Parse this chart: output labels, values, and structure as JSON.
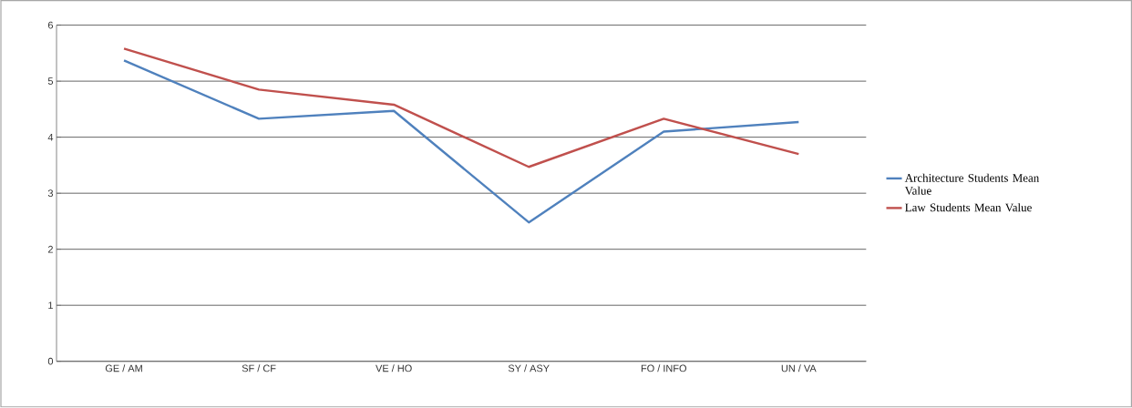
{
  "chart_data": {
    "type": "line",
    "categories": [
      "GE / AM",
      "SF / CF",
      "VE / HO",
      "SY / ASY",
      "FO / INFO",
      "UN / VA"
    ],
    "series": [
      {
        "name": "Architecture Students Mean Value",
        "color": "#4f81bd",
        "values": [
          5.37,
          4.33,
          4.47,
          2.48,
          4.1,
          4.27
        ]
      },
      {
        "name": "Law Students Mean Value",
        "color": "#c0504d",
        "values": [
          5.58,
          4.85,
          4.58,
          3.47,
          4.33,
          3.7
        ]
      }
    ],
    "ylim": [
      0,
      6
    ],
    "yticks": [
      0,
      1,
      2,
      3,
      4,
      5,
      6
    ],
    "grid": "y",
    "legend": "right",
    "marker": "none",
    "line_style": "solid"
  }
}
